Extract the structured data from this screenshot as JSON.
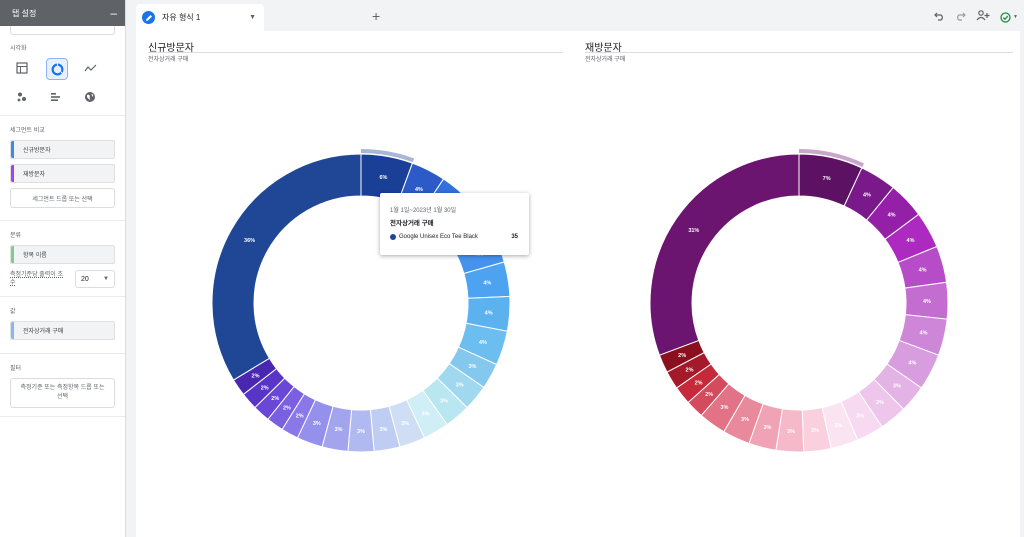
{
  "left_panel": {
    "header": "탭 설정",
    "visualization_title": "시각화",
    "visualization_icons": [
      "table-icon",
      "donut-chart-icon",
      "line-chart-icon",
      "scatter-plot-icon",
      "bar-chart-icon",
      "geo-map-icon"
    ],
    "segment_compare_title": "세그먼트 비교",
    "segments": [
      {
        "label": "신규방문자",
        "color": "#4285f4"
      },
      {
        "label": "재방문자",
        "color": "#a142f4"
      }
    ],
    "segment_drop": "세그먼트 드롭 또는 선택",
    "breakdown_title": "분류",
    "breakdown_chip": "항목 이름",
    "rows_label": "측정기준당 출력이 조 수",
    "rows_value": "20",
    "values_title": "값",
    "value_chip": "전자상거래 구매",
    "filters_title": "필터",
    "filter_drop": "측정기준 또는 측정항목 드롭 또는 선택"
  },
  "tabs": {
    "active_label": "자유 형식 1"
  },
  "toolbar_icons": [
    "undo-icon",
    "redo-icon",
    "share-icon",
    "status-check-icon"
  ],
  "charts": {
    "left": {
      "title": "신규방문자",
      "subtitle": "전자상거래 구매"
    },
    "right": {
      "title": "재방문자",
      "subtitle": "전자상거래 구매"
    }
  },
  "tooltip": {
    "date": "1월 1일~2023년 1월 30일",
    "metric": "전자상거래 구매",
    "item": "Google Unisex Eco Tee Black",
    "value": "35"
  },
  "chart_data": [
    {
      "type": "pie",
      "title": "신규방문자",
      "subtitle": "전자상거래 구매",
      "values": [
        6,
        4,
        4,
        4,
        4,
        4,
        4,
        4,
        3,
        3,
        3,
        3,
        3,
        3,
        3,
        3,
        3,
        2,
        2,
        2,
        2,
        2,
        36
      ],
      "labels": [
        "6%",
        "4%",
        "4%",
        "4%",
        "4%",
        "4%",
        "4%",
        "4%",
        "3%",
        "3%",
        "3%",
        "3%",
        "3%",
        "3%",
        "3%",
        "3%",
        "3%",
        "2%",
        "2%",
        "2%",
        "2%",
        "2%",
        "36%"
      ],
      "colors": [
        "#1a3f96",
        "#2c5bc7",
        "#3370dc",
        "#3e84e8",
        "#4693ee",
        "#4ea3f0",
        "#5cb1ef",
        "#6cbdf0",
        "#84c8ee",
        "#a0d8f0",
        "#b8e6f1",
        "#d0eef5",
        "#d0def5",
        "#c0cdf2",
        "#b1baf0",
        "#a3a4ee",
        "#9690ed",
        "#8a78e8",
        "#7a5fe0",
        "#6a47d6",
        "#5835c6",
        "#4a27b0",
        "#1f4795"
      ],
      "highlight": 0
    },
    {
      "type": "pie",
      "title": "재방문자",
      "subtitle": "전자상거래 구매",
      "values": [
        7,
        4,
        4,
        4,
        4,
        4,
        4,
        4,
        3,
        3,
        3,
        3,
        3,
        3,
        3,
        3,
        3,
        2,
        2,
        2,
        2,
        31
      ],
      "labels": [
        "7%",
        "4%",
        "4%",
        "4%",
        "4%",
        "4%",
        "4%",
        "4%",
        "3%",
        "3%",
        "3%",
        "3%",
        "3%",
        "3%",
        "3%",
        "3%",
        "3%",
        "2%",
        "2%",
        "2%",
        "2%",
        "31%"
      ],
      "colors": [
        "#5c1163",
        "#7a1a8a",
        "#9420a8",
        "#ad2ac1",
        "#b74cc8",
        "#c46dd1",
        "#cd86d8",
        "#d89ddf",
        "#e3b3e6",
        "#eec6ec",
        "#f7d9f2",
        "#fbe4f2",
        "#fad0de",
        "#f5b9c9",
        "#f0a3b4",
        "#e98a9c",
        "#e27285",
        "#d44b5d",
        "#c62a3a",
        "#a51a2a",
        "#8a1020",
        "#6b1470"
      ],
      "highlight": 0
    }
  ]
}
